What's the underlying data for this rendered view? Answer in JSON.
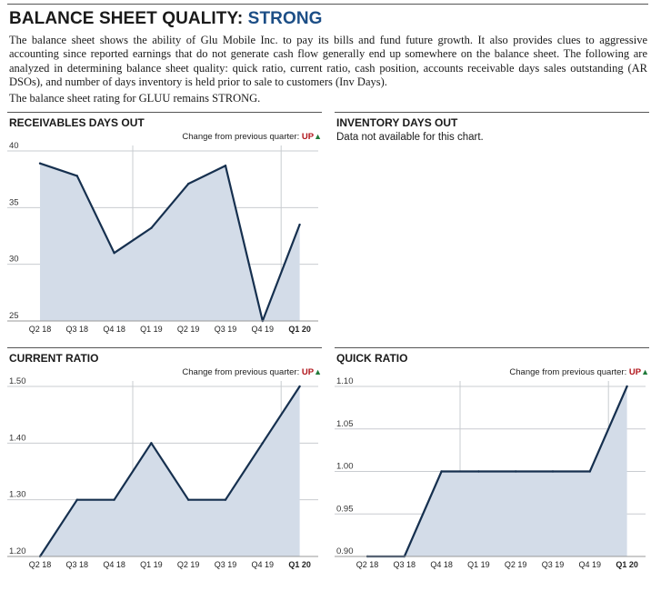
{
  "header": {
    "title_prefix": "BALANCE SHEET QUALITY: ",
    "title_rating": "STRONG",
    "intro": "The balance sheet shows the ability of Glu Mobile Inc. to pay its bills and fund future growth. It also provides clues to aggressive accounting since reported earnings that do not generate cash flow generally end up somewhere on the balance sheet. The following are analyzed in determining balance sheet quality: quick ratio, current ratio, cash position, accounts receivable days sales outstanding (AR DSOs), and number of days inventory is held prior to sale to customers (Inv Days).",
    "rating_line": "The balance sheet rating for GLUU remains STRONG."
  },
  "colors": {
    "accent": "#1c4e86",
    "line": "#16304f",
    "fill": "#d3dce8",
    "up_text": "#b0151b",
    "up_arrow": "#1f7a3a",
    "grid": "#c9ccd0"
  },
  "change_prefix": "Change from previous quarter: ",
  "change_value": "UP",
  "change_arrow": "▲",
  "inventory": {
    "title": "INVENTORY DAYS OUT",
    "message": "Data not available for this chart."
  },
  "chart_data": [
    {
      "id": "receivables",
      "type": "area",
      "title": "RECEIVABLES DAYS OUT",
      "categories": [
        "Q2 18",
        "Q3 18",
        "Q4 18",
        "Q1 19",
        "Q2 19",
        "Q3 19",
        "Q4 19",
        "Q1 20"
      ],
      "values": [
        38.9,
        37.8,
        31.0,
        33.2,
        37.1,
        38.7,
        25.0,
        33.5
      ],
      "ylim": [
        25,
        40
      ],
      "yticks": [
        25,
        30,
        35,
        40
      ],
      "ytick_labels": [
        "25",
        "30",
        "35",
        "40"
      ],
      "highlight_last": true,
      "grid": true
    },
    {
      "id": "current",
      "type": "area",
      "title": "CURRENT RATIO",
      "categories": [
        "Q2 18",
        "Q3 18",
        "Q4 18",
        "Q1 19",
        "Q2 19",
        "Q3 19",
        "Q4 19",
        "Q1 20"
      ],
      "values": [
        1.2,
        1.3,
        1.3,
        1.4,
        1.3,
        1.3,
        1.4,
        1.5
      ],
      "ylim": [
        1.2,
        1.5
      ],
      "yticks": [
        1.2,
        1.3,
        1.4,
        1.5
      ],
      "ytick_labels": [
        "1.20",
        "1.30",
        "1.40",
        "1.50"
      ],
      "highlight_last": true,
      "grid": true
    },
    {
      "id": "quick",
      "type": "area",
      "title": "QUICK RATIO",
      "categories": [
        "Q2 18",
        "Q3 18",
        "Q4 18",
        "Q1 19",
        "Q2 19",
        "Q3 19",
        "Q4 19",
        "Q1 20"
      ],
      "values": [
        0.9,
        0.9,
        1.0,
        1.0,
        1.0,
        1.0,
        1.0,
        1.1
      ],
      "ylim": [
        0.9,
        1.1
      ],
      "yticks": [
        0.9,
        0.95,
        1.0,
        1.05,
        1.1
      ],
      "ytick_labels": [
        "0.90",
        "0.95",
        "1.00",
        "1.05",
        "1.10"
      ],
      "highlight_last": true,
      "grid": true
    }
  ]
}
